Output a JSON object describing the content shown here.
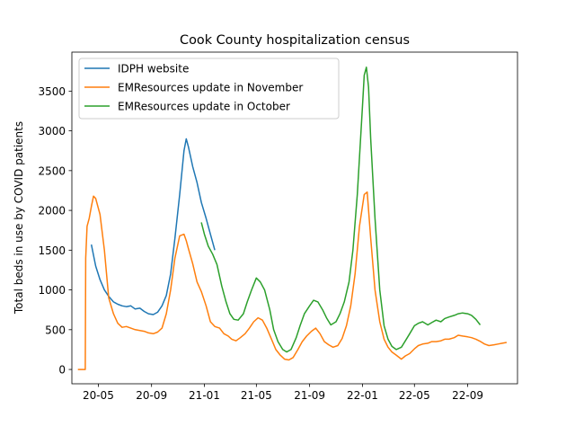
{
  "chart_data": {
    "type": "line",
    "title": "Cook County hospitalization census",
    "xlabel": "",
    "ylabel": "Total beds in use by COVID patients",
    "x_is_date": true,
    "xlim": [
      "2020-03-01",
      "2022-12-25"
    ],
    "ylim": [
      -180,
      3990
    ],
    "x_ticks": [
      {
        "date": "2020-05-01",
        "label": "20-05"
      },
      {
        "date": "2020-09-01",
        "label": "20-09"
      },
      {
        "date": "2021-01-01",
        "label": "21-01"
      },
      {
        "date": "2021-05-01",
        "label": "21-05"
      },
      {
        "date": "2021-09-01",
        "label": "21-09"
      },
      {
        "date": "2022-01-01",
        "label": "22-01"
      },
      {
        "date": "2022-05-01",
        "label": "22-05"
      },
      {
        "date": "2022-09-01",
        "label": "22-09"
      }
    ],
    "y_ticks": [
      0,
      500,
      1000,
      1500,
      2000,
      2500,
      3000,
      3500
    ],
    "grid": false,
    "legend_position": "top-left",
    "series": [
      {
        "name": "IDPH website",
        "color": "#1f77b4",
        "x": [
          "2020-04-15",
          "2020-04-25",
          "2020-05-05",
          "2020-05-15",
          "2020-05-25",
          "2020-06-05",
          "2020-06-15",
          "2020-06-25",
          "2020-07-05",
          "2020-07-15",
          "2020-07-25",
          "2020-08-05",
          "2020-08-15",
          "2020-08-25",
          "2020-09-05",
          "2020-09-15",
          "2020-09-25",
          "2020-10-05",
          "2020-10-15",
          "2020-10-25",
          "2020-11-05",
          "2020-11-15",
          "2020-11-20",
          "2020-11-25",
          "2020-12-05",
          "2020-12-15",
          "2020-12-25",
          "2021-01-05",
          "2021-01-15",
          "2021-01-25"
        ],
        "y": [
          1570,
          1300,
          1130,
          1000,
          920,
          850,
          820,
          800,
          790,
          800,
          760,
          770,
          730,
          700,
          690,
          720,
          800,
          930,
          1200,
          1650,
          2200,
          2750,
          2900,
          2800,
          2550,
          2350,
          2100,
          1900,
          1700,
          1500
        ]
      },
      {
        "name": "EMResources update in November",
        "color": "#ff7f0e",
        "x": [
          "2020-03-15",
          "2020-04-01",
          "2020-04-02",
          "2020-04-05",
          "2020-04-10",
          "2020-04-15",
          "2020-04-20",
          "2020-04-25",
          "2020-05-05",
          "2020-05-15",
          "2020-05-25",
          "2020-06-05",
          "2020-06-15",
          "2020-06-25",
          "2020-07-05",
          "2020-07-15",
          "2020-07-25",
          "2020-08-05",
          "2020-08-15",
          "2020-08-25",
          "2020-09-05",
          "2020-09-15",
          "2020-09-25",
          "2020-10-05",
          "2020-10-15",
          "2020-10-25",
          "2020-11-05",
          "2020-11-15",
          "2020-11-20",
          "2020-11-25",
          "2020-12-05",
          "2020-12-15",
          "2020-12-25",
          "2021-01-05",
          "2021-01-15",
          "2021-01-25",
          "2021-02-05",
          "2021-02-15",
          "2021-02-25",
          "2021-03-05",
          "2021-03-15",
          "2021-03-25",
          "2021-04-05",
          "2021-04-15",
          "2021-04-25",
          "2021-05-05",
          "2021-05-15",
          "2021-05-25",
          "2021-06-05",
          "2021-06-15",
          "2021-06-25",
          "2021-07-05",
          "2021-07-15",
          "2021-07-25",
          "2021-08-05",
          "2021-08-15",
          "2021-08-25",
          "2021-09-05",
          "2021-09-15",
          "2021-09-25",
          "2021-10-05",
          "2021-10-15",
          "2021-10-25",
          "2021-11-05",
          "2021-11-15",
          "2021-11-25",
          "2021-12-05",
          "2021-12-15",
          "2021-12-25",
          "2022-01-05",
          "2022-01-12",
          "2022-01-20",
          "2022-01-30",
          "2022-02-10",
          "2022-02-20",
          "2022-03-01",
          "2022-03-10",
          "2022-03-20",
          "2022-04-01",
          "2022-04-10",
          "2022-04-20",
          "2022-05-01",
          "2022-05-10",
          "2022-05-20",
          "2022-06-01",
          "2022-06-10",
          "2022-06-20",
          "2022-07-01",
          "2022-07-10",
          "2022-07-20",
          "2022-08-01",
          "2022-08-10",
          "2022-08-20",
          "2022-09-01",
          "2022-09-10",
          "2022-09-20",
          "2022-10-01",
          "2022-10-10",
          "2022-10-20",
          "2022-11-01",
          "2022-11-10",
          "2022-11-20",
          "2022-11-30"
        ],
        "y": [
          0,
          0,
          1400,
          1800,
          1900,
          2050,
          2180,
          2150,
          1950,
          1500,
          900,
          700,
          580,
          530,
          540,
          520,
          500,
          490,
          480,
          460,
          450,
          470,
          520,
          700,
          1000,
          1400,
          1680,
          1700,
          1620,
          1520,
          1330,
          1100,
          980,
          800,
          600,
          540,
          520,
          450,
          420,
          380,
          360,
          400,
          450,
          520,
          600,
          650,
          620,
          520,
          380,
          250,
          180,
          130,
          120,
          150,
          250,
          350,
          420,
          480,
          520,
          450,
          350,
          310,
          280,
          300,
          390,
          550,
          800,
          1200,
          1800,
          2200,
          2230,
          1650,
          1000,
          600,
          380,
          280,
          220,
          180,
          130,
          170,
          200,
          260,
          300,
          320,
          330,
          350,
          350,
          360,
          380,
          380,
          400,
          430,
          420,
          410,
          400,
          380,
          350,
          320,
          300,
          310,
          320,
          330,
          340
        ]
      },
      {
        "name": "EMResources update in October",
        "color": "#2ca02c",
        "x": [
          "2020-12-25",
          "2021-01-01",
          "2021-01-10",
          "2021-01-20",
          "2021-01-30",
          "2021-02-10",
          "2021-02-20",
          "2021-03-01",
          "2021-03-10",
          "2021-03-20",
          "2021-04-01",
          "2021-04-10",
          "2021-04-20",
          "2021-05-01",
          "2021-05-10",
          "2021-05-20",
          "2021-06-01",
          "2021-06-10",
          "2021-06-20",
          "2021-07-01",
          "2021-07-10",
          "2021-07-20",
          "2021-08-01",
          "2021-08-10",
          "2021-08-20",
          "2021-09-01",
          "2021-09-10",
          "2021-09-20",
          "2021-10-01",
          "2021-10-10",
          "2021-10-20",
          "2021-11-01",
          "2021-11-10",
          "2021-11-20",
          "2021-12-01",
          "2021-12-10",
          "2021-12-20",
          "2022-01-01",
          "2022-01-05",
          "2022-01-10",
          "2022-01-15",
          "2022-01-20",
          "2022-01-30",
          "2022-02-10",
          "2022-02-20",
          "2022-03-01",
          "2022-03-10",
          "2022-03-20",
          "2022-04-01",
          "2022-04-10",
          "2022-04-20",
          "2022-05-01",
          "2022-05-10",
          "2022-05-20",
          "2022-06-01",
          "2022-06-10",
          "2022-06-20",
          "2022-07-01",
          "2022-07-10",
          "2022-07-20",
          "2022-08-01",
          "2022-08-10",
          "2022-08-20",
          "2022-09-01",
          "2022-09-10",
          "2022-09-20",
          "2022-09-30"
        ],
        "y": [
          1850,
          1700,
          1550,
          1450,
          1320,
          1050,
          850,
          700,
          630,
          620,
          700,
          850,
          1000,
          1150,
          1100,
          1000,
          750,
          500,
          350,
          250,
          220,
          250,
          400,
          550,
          700,
          800,
          870,
          850,
          750,
          650,
          560,
          600,
          700,
          850,
          1100,
          1500,
          2200,
          3300,
          3700,
          3800,
          3550,
          2900,
          1900,
          1000,
          550,
          380,
          290,
          250,
          280,
          360,
          450,
          550,
          580,
          600,
          560,
          590,
          620,
          600,
          640,
          660,
          680,
          700,
          710,
          700,
          680,
          630,
          560
        ]
      }
    ]
  }
}
